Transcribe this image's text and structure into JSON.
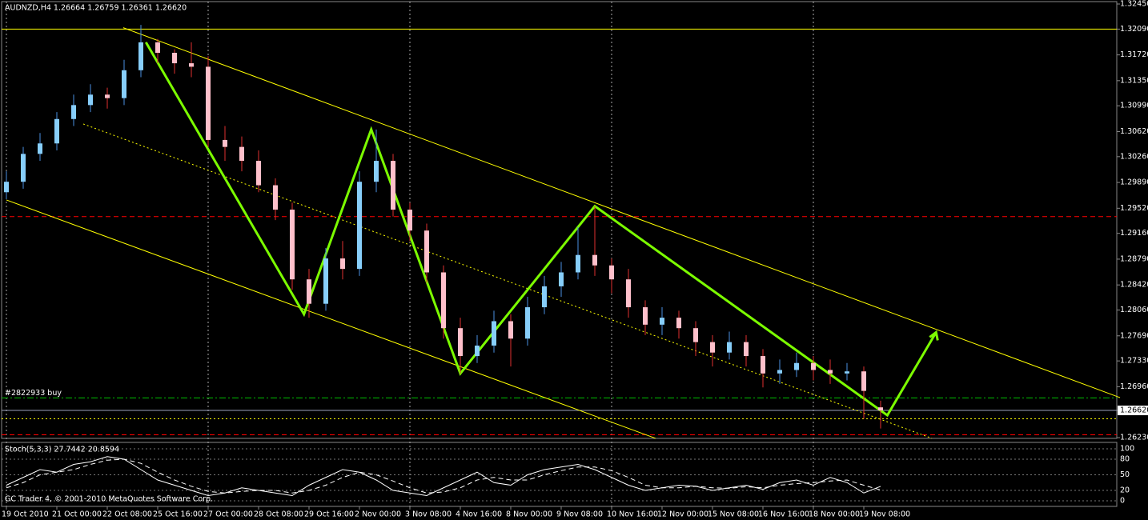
{
  "chart_data": {
    "type": "candlestick",
    "title": "AUDNZD,H4  1.26664 1.26759 1.26361 1.26620",
    "footer": "GC Trader 4, © 2001-2010 MetaQuotes Software Corp.",
    "categories": [
      "19 Oct 2010",
      null,
      null,
      "21 Oct 00:00",
      null,
      null,
      "22 Oct 08:00",
      null,
      null,
      "25 Oct 16:00",
      null,
      null,
      "27 Oct 00:00",
      null,
      null,
      "28 Oct 08:00",
      null,
      null,
      "29 Oct 16:00",
      null,
      null,
      "2 Nov 00:00",
      null,
      null,
      "3 Nov 08:00",
      null,
      null,
      "4 Nov 16:00",
      null,
      null,
      "8 Nov 00:00",
      null,
      null,
      "9 Nov 08:00",
      null,
      null,
      "10 Nov 16:00",
      null,
      null,
      "12 Nov 00:00",
      null,
      null,
      "15 Nov 08:00",
      null,
      null,
      "16 Nov 16:00",
      null,
      null,
      "18 Nov 00:00",
      null,
      null,
      "19 Nov 08:00",
      null
    ],
    "open": [
      1.2975,
      1.299,
      1.303,
      1.3045,
      1.308,
      1.31,
      1.3115,
      1.311,
      1.315,
      1.319,
      1.3175,
      1.316,
      1.3155,
      1.305,
      1.304,
      1.302,
      1.2985,
      1.295,
      1.285,
      1.2815,
      1.288,
      1.2865,
      1.299,
      1.302,
      1.295,
      1.292,
      1.286,
      1.278,
      1.274,
      1.2755,
      1.279,
      1.2765,
      1.281,
      1.284,
      1.286,
      1.2885,
      1.287,
      1.285,
      1.281,
      1.2785,
      1.2795,
      1.278,
      1.276,
      1.2745,
      1.276,
      1.274,
      1.2715,
      1.272,
      1.273,
      1.272,
      1.2715,
      1.2718,
      1.26664
    ],
    "high": [
      1.3005,
      1.304,
      1.306,
      1.309,
      1.3115,
      1.313,
      1.3125,
      1.3165,
      1.3215,
      1.3195,
      1.318,
      1.319,
      1.317,
      1.307,
      1.3055,
      1.3035,
      1.2995,
      1.296,
      1.2865,
      1.2895,
      1.2905,
      1.3005,
      1.3065,
      1.303,
      1.296,
      1.293,
      1.287,
      1.2795,
      1.277,
      1.2805,
      1.28,
      1.2825,
      1.2855,
      1.2875,
      1.2925,
      1.2955,
      1.288,
      1.2865,
      1.282,
      1.281,
      1.2805,
      1.279,
      1.277,
      1.2775,
      1.277,
      1.275,
      1.2735,
      1.2745,
      1.274,
      1.2735,
      1.273,
      1.2725,
      1.26759
    ],
    "low": [
      1.2965,
      1.298,
      1.302,
      1.3035,
      1.307,
      1.309,
      1.3095,
      1.31,
      1.314,
      1.316,
      1.3145,
      1.314,
      1.304,
      1.302,
      1.3005,
      1.2975,
      1.2935,
      1.2835,
      1.2795,
      1.2805,
      1.285,
      1.2855,
      1.2975,
      1.294,
      1.2905,
      1.2845,
      1.2765,
      1.2715,
      1.273,
      1.2745,
      1.2725,
      1.2755,
      1.28,
      1.2825,
      1.285,
      1.2855,
      1.283,
      1.2795,
      1.277,
      1.277,
      1.2765,
      1.274,
      1.2725,
      1.2735,
      1.2725,
      1.2695,
      1.27,
      1.271,
      1.2705,
      1.27,
      1.2705,
      1.265,
      1.26361
    ],
    "close": [
      1.299,
      1.303,
      1.3045,
      1.308,
      1.31,
      1.3115,
      1.311,
      1.315,
      1.319,
      1.3175,
      1.316,
      1.3155,
      1.305,
      1.304,
      1.302,
      1.2985,
      1.295,
      1.285,
      1.2815,
      1.288,
      1.2865,
      1.299,
      1.302,
      1.295,
      1.292,
      1.286,
      1.278,
      1.274,
      1.2755,
      1.279,
      1.2765,
      1.281,
      1.284,
      1.286,
      1.2885,
      1.287,
      1.285,
      1.281,
      1.2785,
      1.2795,
      1.278,
      1.276,
      1.2745,
      1.276,
      1.274,
      1.2715,
      1.272,
      1.273,
      1.272,
      1.2715,
      1.2718,
      1.269,
      1.2662
    ],
    "up_color": "#87cefa",
    "down_color": "#ffc0cb",
    "ylim": [
      1.2623,
      1.3245
    ],
    "yticks": [
      {
        "value": 1.3245,
        "label": "1.32450"
      },
      {
        "value": 1.3209,
        "label": "1.32090"
      },
      {
        "value": 1.3172,
        "label": "1.31720"
      },
      {
        "value": 1.3135,
        "label": "1.31350"
      },
      {
        "value": 1.3099,
        "label": "1.30990"
      },
      {
        "value": 1.3062,
        "label": "1.30620"
      },
      {
        "value": 1.3026,
        "label": "1.30260"
      },
      {
        "value": 1.2989,
        "label": "1.29890"
      },
      {
        "value": 1.2952,
        "label": "1.29520"
      },
      {
        "value": 1.2916,
        "label": "1.29160"
      },
      {
        "value": 1.2879,
        "label": "1.28790"
      },
      {
        "value": 1.2842,
        "label": "1.28420"
      },
      {
        "value": 1.2806,
        "label": "1.28060"
      },
      {
        "value": 1.2769,
        "label": "1.27690"
      },
      {
        "value": 1.2733,
        "label": "1.27330"
      },
      {
        "value": 1.2696,
        "label": "1.26960"
      },
      {
        "value": 1.2662,
        "label": "1.26620"
      },
      {
        "value": 1.2623,
        "label": "1.26230"
      }
    ],
    "grid": true,
    "levels": [
      {
        "value": 1.3209,
        "color": "#ffff00",
        "style": "solid"
      },
      {
        "value": 1.294,
        "color": "#ff0000",
        "style": "dash"
      },
      {
        "value": 1.268,
        "color": "#00c000",
        "style": "dashdot",
        "label": "#2822933 buy"
      },
      {
        "value": 1.265,
        "color": "#ffff00",
        "style": "dot"
      },
      {
        "value": 1.2627,
        "color": "#ff0000",
        "style": "dash"
      }
    ],
    "lines": [
      {
        "color": "#ffff00",
        "style": "solid",
        "x": [
          6.95,
          66.24
        ],
        "y": [
          1.3211,
          1.26804
        ]
      },
      {
        "color": "#ffff00",
        "style": "dot",
        "x": [
          4.57,
          55.05
        ],
        "y": [
          1.30729,
          1.26219
        ]
      },
      {
        "color": "#ffff00",
        "style": "solid",
        "x": [
          0,
          38.62
        ],
        "y": [
          1.29639,
          1.26219
        ]
      },
      {
        "color": "#7cfc00",
        "style": "thick",
        "x": [
          8.3,
          17.7,
          21.7,
          27,
          35,
          52.4,
          55.3
        ],
        "y": [
          1.319,
          1.28,
          1.3065,
          1.2715,
          1.2955,
          1.2655,
          1.2774
        ]
      }
    ],
    "stochastic": {
      "label": "Stoch(5,3,3) 27.7442 20.8594",
      "ylim": [
        0,
        100
      ],
      "yticks": [
        100,
        80,
        50,
        20,
        0
      ],
      "series": [
        {
          "name": "main",
          "color": "#ffffff",
          "style": "solid",
          "values": [
            30,
            45,
            60,
            55,
            70,
            75,
            85,
            80,
            60,
            40,
            30,
            20,
            10,
            15,
            25,
            20,
            15,
            10,
            30,
            45,
            60,
            55,
            40,
            20,
            15,
            10,
            25,
            40,
            55,
            35,
            30,
            50,
            60,
            65,
            70,
            60,
            45,
            30,
            20,
            25,
            30,
            28,
            20,
            25,
            30,
            22,
            35,
            40,
            30,
            45,
            35,
            15,
            27.7442
          ]
        },
        {
          "name": "signal",
          "color": "#ffffff",
          "style": "dash",
          "values": [
            25,
            35,
            50,
            55,
            60,
            70,
            78,
            80,
            72,
            55,
            40,
            28,
            18,
            15,
            18,
            20,
            20,
            15,
            20,
            30,
            45,
            55,
            50,
            38,
            25,
            15,
            17,
            25,
            40,
            45,
            40,
            40,
            50,
            58,
            65,
            65,
            58,
            45,
            30,
            25,
            25,
            28,
            25,
            24,
            27,
            25,
            30,
            33,
            35,
            38,
            40,
            30,
            20.8594
          ]
        }
      ]
    }
  }
}
